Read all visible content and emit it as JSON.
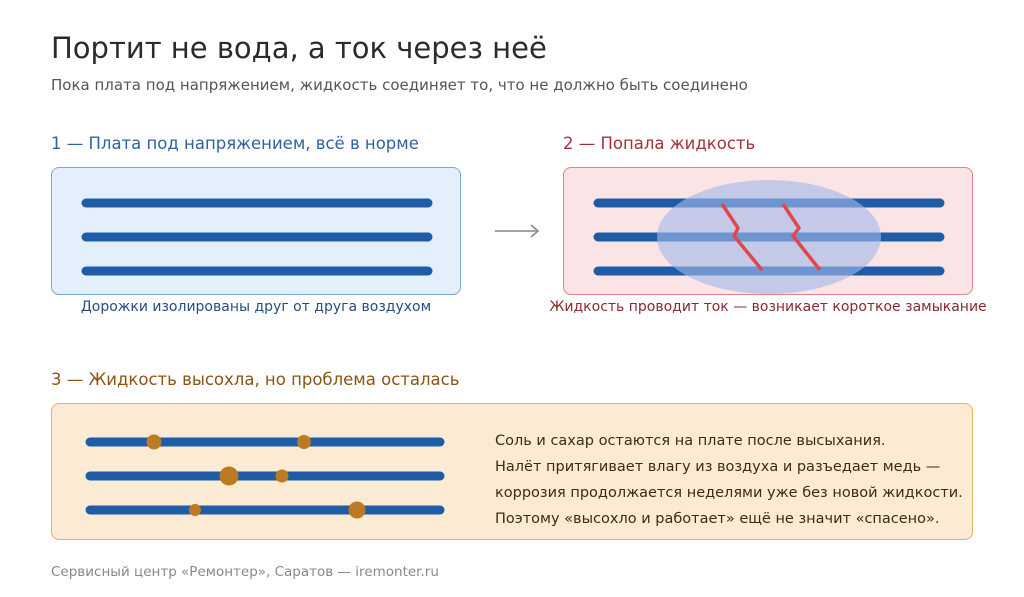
{
  "title": "Портит не вода, а ток через неё",
  "subtitle": "Пока плата под напряжением, жидкость соединяет то, что не должно быть соединено",
  "stages": [
    {
      "heading": "1 — Плата под напряжением, всё в норме",
      "caption": "Дорожки изолированы друг от друга воздухом",
      "color": "#2f62a5"
    },
    {
      "heading": "2 — Попала жидкость",
      "caption": "Жидкость проводит ток — возникает короткое замыкание",
      "color": "#a3313a"
    },
    {
      "heading": "3 — Жидкость высохла, но проблема осталась",
      "explanation": [
        "Соль и сахар остаются на плате после высыхания.",
        "Налёт притягивает влагу из воздуха и разъедает медь —",
        "коррозия продолжается неделями уже без новой жидкости.",
        "Поэтому «высохло и работает» ещё не значит «спасено»."
      ],
      "color": "#8b5412"
    }
  ],
  "footer": "Сервисный центр «Ремонтер», Саратов — iremonter.ru",
  "colors": {
    "trace": "#1f5ca8",
    "liquid": "#b7c9ec",
    "spark": "#e0474c",
    "corrosion": "#bc7a22"
  },
  "icons": {
    "flow_arrow": "arrow-right-icon",
    "short_circuit": "lightning-icon"
  }
}
